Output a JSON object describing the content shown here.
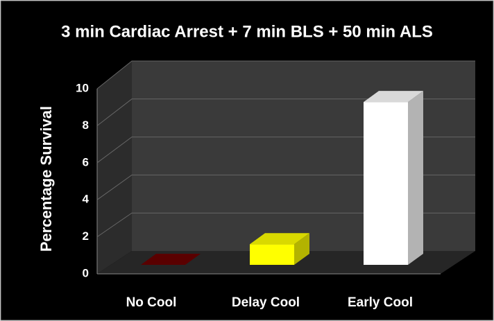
{
  "chart_data": {
    "type": "bar3d",
    "title": "3 min Cardiac Arrest + 7 min BLS + 50 min ALS",
    "ylabel": "Percentage Survival",
    "categories": [
      "No Cool",
      "Delay Cool",
      "Early Cool"
    ],
    "values": [
      0,
      1.1,
      8.7
    ],
    "colors": [
      "#6a0000",
      "#ffff00",
      "#ffffff"
    ],
    "ylim": [
      0,
      10
    ],
    "yticks": [
      0,
      2,
      4,
      6,
      8,
      10
    ],
    "grid": true
  }
}
